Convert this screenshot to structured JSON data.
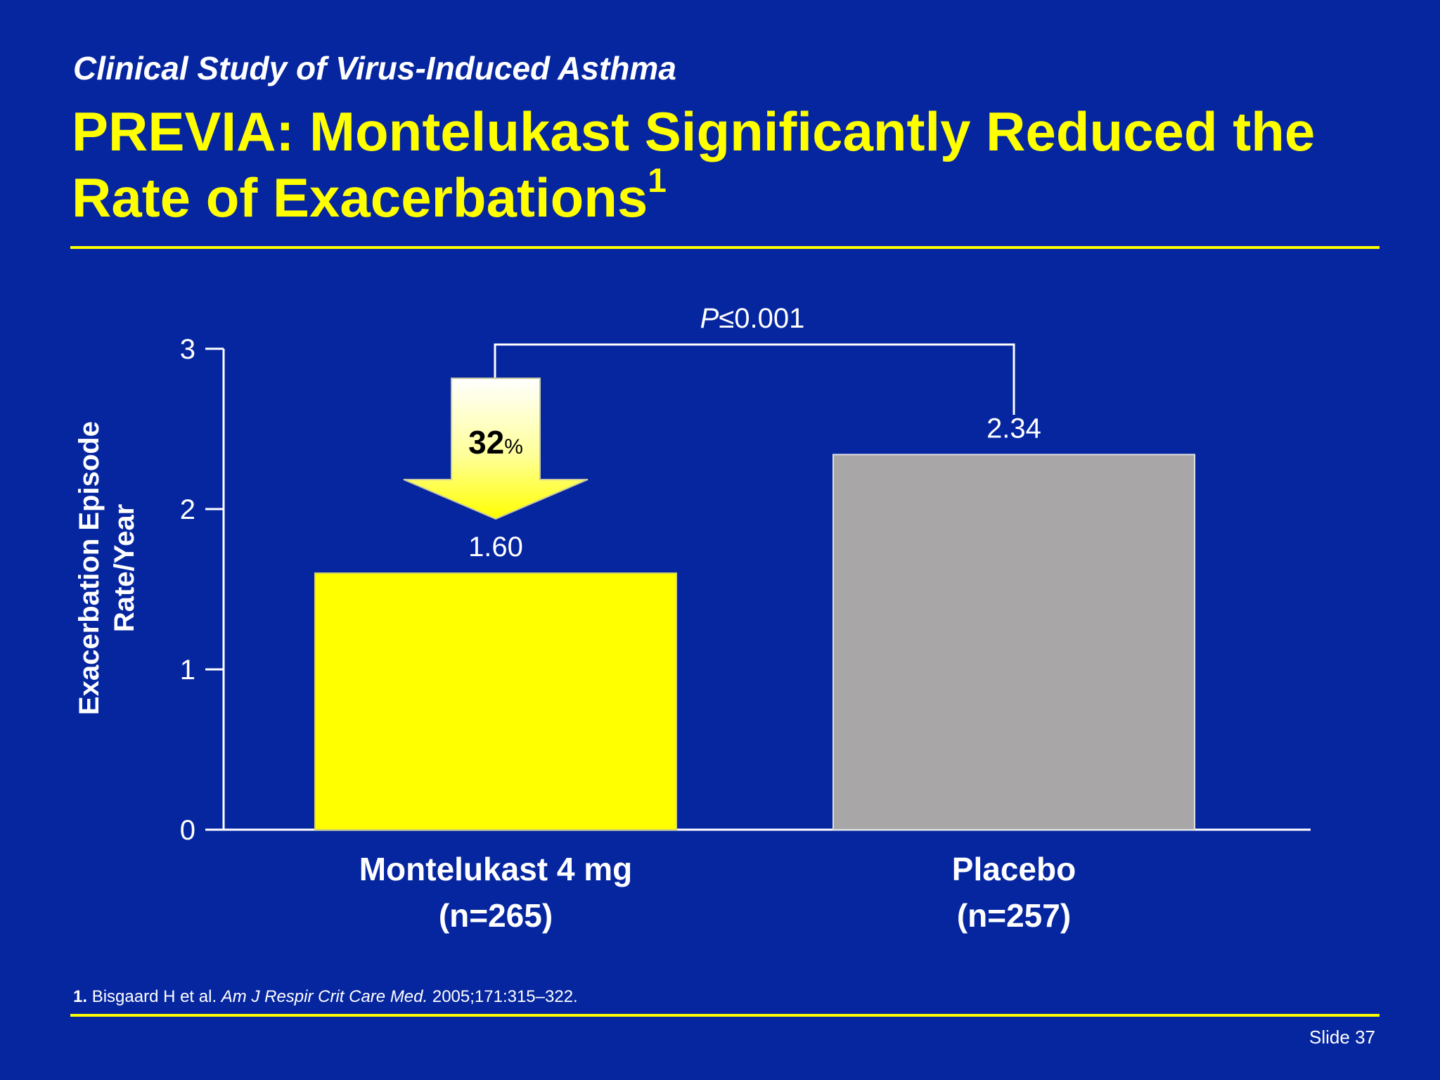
{
  "slide": {
    "subtitle": "Clinical Study of Virus-Induced Asthma",
    "title_main": "PREVIA: Montelukast Significantly Reduced the Rate of Exacerbations",
    "title_superscript": "1",
    "footnote": {
      "number": "1.",
      "authors": "Bisgaard H et al.",
      "journal": "Am J Respir Crit Care Med.",
      "citation": "2005;171:315–322."
    },
    "slide_number": "Slide 37"
  },
  "colors": {
    "background": "#0626A0",
    "accent": "#FFFF00",
    "montelukast_bar": "#FFFF00",
    "placebo_bar": "#A8A6A6",
    "text": "#FFFFFF"
  },
  "chart_data": {
    "type": "bar",
    "title": "",
    "ylabel_line1": "Exacerbation Episode",
    "ylabel_line2": "Rate/Year",
    "xlabel": "",
    "ylim": [
      0,
      3
    ],
    "yticks": [
      "0",
      "1",
      "2",
      "3"
    ],
    "categories": [
      {
        "line1": "Montelukast 4 mg",
        "line2": "(n=265)"
      },
      {
        "line1": "Placebo",
        "line2": "(n=257)"
      }
    ],
    "values": [
      1.6,
      2.34
    ],
    "value_labels": [
      "1.60",
      "2.34"
    ],
    "significance": {
      "p_italic": "P",
      "p_rest": "≤0.001"
    },
    "reduction": {
      "value": "32",
      "unit": "%"
    }
  }
}
